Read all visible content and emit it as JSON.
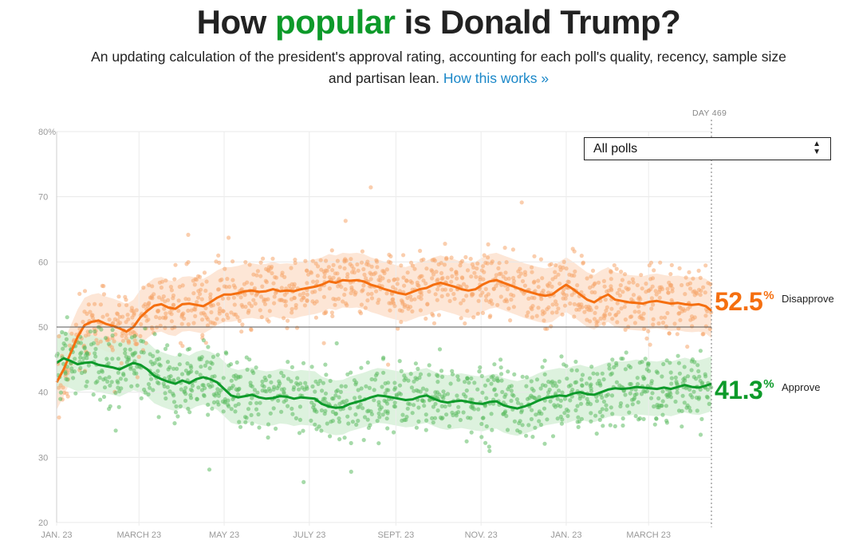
{
  "header": {
    "title_pre": "How ",
    "title_highlight": "popular",
    "title_post": " is Donald Trump?",
    "subtitle": "An updating calculation of the president's approval rating, accounting for each poll's quality, recency, sample size and partisan lean.",
    "link": "How this works »"
  },
  "controls": {
    "poll_filter": "All polls"
  },
  "marker": {
    "label": "DAY 469"
  },
  "colors": {
    "approve": "#0d9a2a",
    "disapprove": "#f56f10",
    "approve_band": "#d7f0d8",
    "disapprove_band": "#fde2cf",
    "approve_dots": "#5dbb63",
    "disapprove_dots": "#f6a56b"
  },
  "chart_data": {
    "type": "line",
    "title": "How popular is Donald Trump?",
    "xlabel": "",
    "ylabel": "",
    "ylim": [
      20,
      80
    ],
    "yticks": [
      20,
      30,
      40,
      50,
      60,
      70,
      80
    ],
    "ytick_labels": [
      "20",
      "30",
      "40",
      "50",
      "60",
      "70",
      "80%"
    ],
    "xlim": [
      0,
      469
    ],
    "xticks": [
      {
        "day": 0,
        "label": "JAN. 23"
      },
      {
        "day": 59,
        "label": "MARCH 23"
      },
      {
        "day": 120,
        "label": "MAY 23"
      },
      {
        "day": 181,
        "label": "JULY 23"
      },
      {
        "day": 243,
        "label": "SEPT. 23"
      },
      {
        "day": 304,
        "label": "NOV. 23"
      },
      {
        "day": 365,
        "label": "JAN. 23"
      },
      {
        "day": 424,
        "label": "MARCH 23"
      }
    ],
    "reference_line": 50,
    "marker_day": 469,
    "series": [
      {
        "name": "Disapprove",
        "end_value": "52.5",
        "end_label": "Disapprove",
        "x": [
          0,
          5,
          10,
          15,
          20,
          25,
          30,
          35,
          40,
          45,
          50,
          55,
          60,
          65,
          70,
          75,
          80,
          85,
          90,
          95,
          100,
          105,
          110,
          115,
          120,
          125,
          130,
          135,
          140,
          145,
          150,
          155,
          160,
          165,
          170,
          175,
          180,
          185,
          190,
          195,
          200,
          205,
          210,
          215,
          220,
          225,
          230,
          235,
          240,
          245,
          250,
          255,
          260,
          265,
          270,
          275,
          280,
          285,
          290,
          295,
          300,
          305,
          310,
          315,
          320,
          325,
          330,
          335,
          340,
          345,
          350,
          355,
          360,
          365,
          370,
          375,
          380,
          385,
          390,
          395,
          400,
          405,
          410,
          415,
          420,
          425,
          430,
          435,
          440,
          445,
          450,
          455,
          460,
          465,
          469
        ],
        "values": [
          41.5,
          43.5,
          46,
          48.5,
          50.3,
          50.8,
          51,
          50.5,
          50.2,
          49.8,
          49.3,
          50,
          51.5,
          52.5,
          53.3,
          53.5,
          53,
          52.8,
          53.5,
          53.6,
          53.4,
          53.2,
          53.8,
          54.5,
          55,
          55,
          55.2,
          55.5,
          55.6,
          55.4,
          55.5,
          55.8,
          55.5,
          55.6,
          55.5,
          55.8,
          56,
          56.2,
          56.5,
          57,
          56.8,
          57.2,
          57.1,
          57.2,
          57,
          56.5,
          56.2,
          55.8,
          55.5,
          55.2,
          55,
          55.4,
          55.8,
          56,
          56.5,
          56.8,
          56.5,
          56.2,
          55.8,
          55.6,
          55.8,
          56.5,
          57,
          57.2,
          56.8,
          56.4,
          56,
          55.6,
          55.3,
          55,
          54.8,
          55,
          55.8,
          56.5,
          55.8,
          55,
          54.2,
          53.8,
          54.5,
          55,
          54.2,
          54,
          53.8,
          53.7,
          53.6,
          53.9,
          54,
          53.8,
          53.6,
          53.7,
          53.5,
          53.4,
          53.5,
          53.2,
          52.5
        ]
      },
      {
        "name": "Approve",
        "end_value": "41.3",
        "end_label": "Approve",
        "x": [
          0,
          5,
          10,
          15,
          20,
          25,
          30,
          35,
          40,
          45,
          50,
          55,
          60,
          65,
          70,
          75,
          80,
          85,
          90,
          95,
          100,
          105,
          110,
          115,
          120,
          125,
          130,
          135,
          140,
          145,
          150,
          155,
          160,
          165,
          170,
          175,
          180,
          185,
          190,
          195,
          200,
          205,
          210,
          215,
          220,
          225,
          230,
          235,
          240,
          245,
          250,
          255,
          260,
          265,
          270,
          275,
          280,
          285,
          290,
          295,
          300,
          305,
          310,
          315,
          320,
          325,
          330,
          335,
          340,
          345,
          350,
          355,
          360,
          365,
          370,
          375,
          380,
          385,
          390,
          395,
          400,
          405,
          410,
          415,
          420,
          425,
          430,
          435,
          440,
          445,
          450,
          455,
          460,
          465,
          469
        ],
        "values": [
          44.5,
          45.2,
          44.8,
          44.3,
          44.5,
          44.6,
          44.2,
          44,
          43.8,
          43.5,
          44,
          44.5,
          44.2,
          43.5,
          42.5,
          42,
          41.6,
          41.3,
          41.8,
          41.4,
          42,
          42.3,
          42,
          41.5,
          40.5,
          39.5,
          39.2,
          39.4,
          39.6,
          39.2,
          39,
          39.1,
          39.4,
          39.3,
          39,
          39.2,
          39.1,
          39,
          38.2,
          37.8,
          37.6,
          37.7,
          38.2,
          38.5,
          38.8,
          39.2,
          39.5,
          39.4,
          39.2,
          39,
          38.8,
          38.9,
          39.3,
          39.5,
          39,
          38.6,
          38.4,
          38.6,
          38.7,
          38.5,
          38.3,
          38.2,
          38.5,
          38.6,
          38,
          37.7,
          37.5,
          37.8,
          38.2,
          38.7,
          39.1,
          39.3,
          39.5,
          39.4,
          39.8,
          40,
          39.7,
          39.6,
          40,
          40.4,
          40.6,
          40.5,
          40.6,
          40.8,
          40.7,
          40.6,
          40.5,
          40.7,
          40.5,
          40.8,
          41.1,
          40.8,
          40.7,
          41,
          41.3
        ]
      }
    ]
  }
}
